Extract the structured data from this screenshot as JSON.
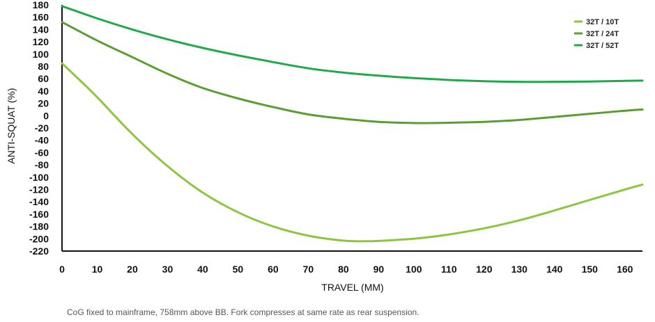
{
  "chart_data": {
    "type": "line",
    "xlabel": "TRAVEL (MM)",
    "ylabel": "ANTI-SQUAT (%)",
    "xlim": [
      0,
      165
    ],
    "ylim": [
      -220,
      180
    ],
    "x_ticks": [
      0,
      10,
      20,
      30,
      40,
      50,
      60,
      70,
      80,
      90,
      100,
      110,
      120,
      130,
      140,
      150,
      160
    ],
    "y_ticks": [
      180,
      160,
      140,
      120,
      100,
      80,
      60,
      40,
      20,
      0,
      -20,
      -40,
      -60,
      -80,
      -100,
      -120,
      -140,
      -160,
      -180,
      -200,
      -220
    ],
    "grid": false,
    "legend_position": "top-right",
    "series": [
      {
        "name": "32T / 10T",
        "color": "#8cc63f",
        "x": [
          0,
          5,
          10,
          20,
          30,
          40,
          50,
          60,
          70,
          80,
          87,
          90,
          100,
          110,
          120,
          130,
          140,
          150,
          160,
          165
        ],
        "y": [
          85,
          58,
          30,
          -30,
          -82,
          -125,
          -157,
          -180,
          -195,
          -203,
          -204,
          -203.5,
          -200,
          -193,
          -183,
          -170,
          -154,
          -137,
          -120,
          -112
        ]
      },
      {
        "name": "32T / 24T",
        "color": "#5a9e2f",
        "x": [
          0,
          10,
          20,
          30,
          40,
          50,
          60,
          70,
          80,
          90,
          100,
          105,
          110,
          120,
          130,
          140,
          150,
          160,
          165
        ],
        "y": [
          152,
          122,
          95,
          68,
          45,
          28,
          14,
          2,
          -5,
          -10,
          -12,
          -12,
          -11.5,
          -10,
          -7,
          -2,
          3,
          8,
          10
        ]
      },
      {
        "name": "32T / 52T",
        "color": "#1faa4a",
        "x": [
          0,
          10,
          20,
          30,
          40,
          50,
          60,
          70,
          80,
          90,
          100,
          110,
          120,
          130,
          140,
          150,
          160,
          165
        ],
        "y": [
          178,
          158,
          140,
          124,
          110,
          98,
          87,
          77,
          70,
          65,
          61,
          58,
          56,
          55,
          55,
          55.5,
          56.5,
          57
        ]
      }
    ]
  },
  "footnote": "CoG fixed to mainframe, 758mm above BB. Fork compresses at same rate as rear suspension."
}
